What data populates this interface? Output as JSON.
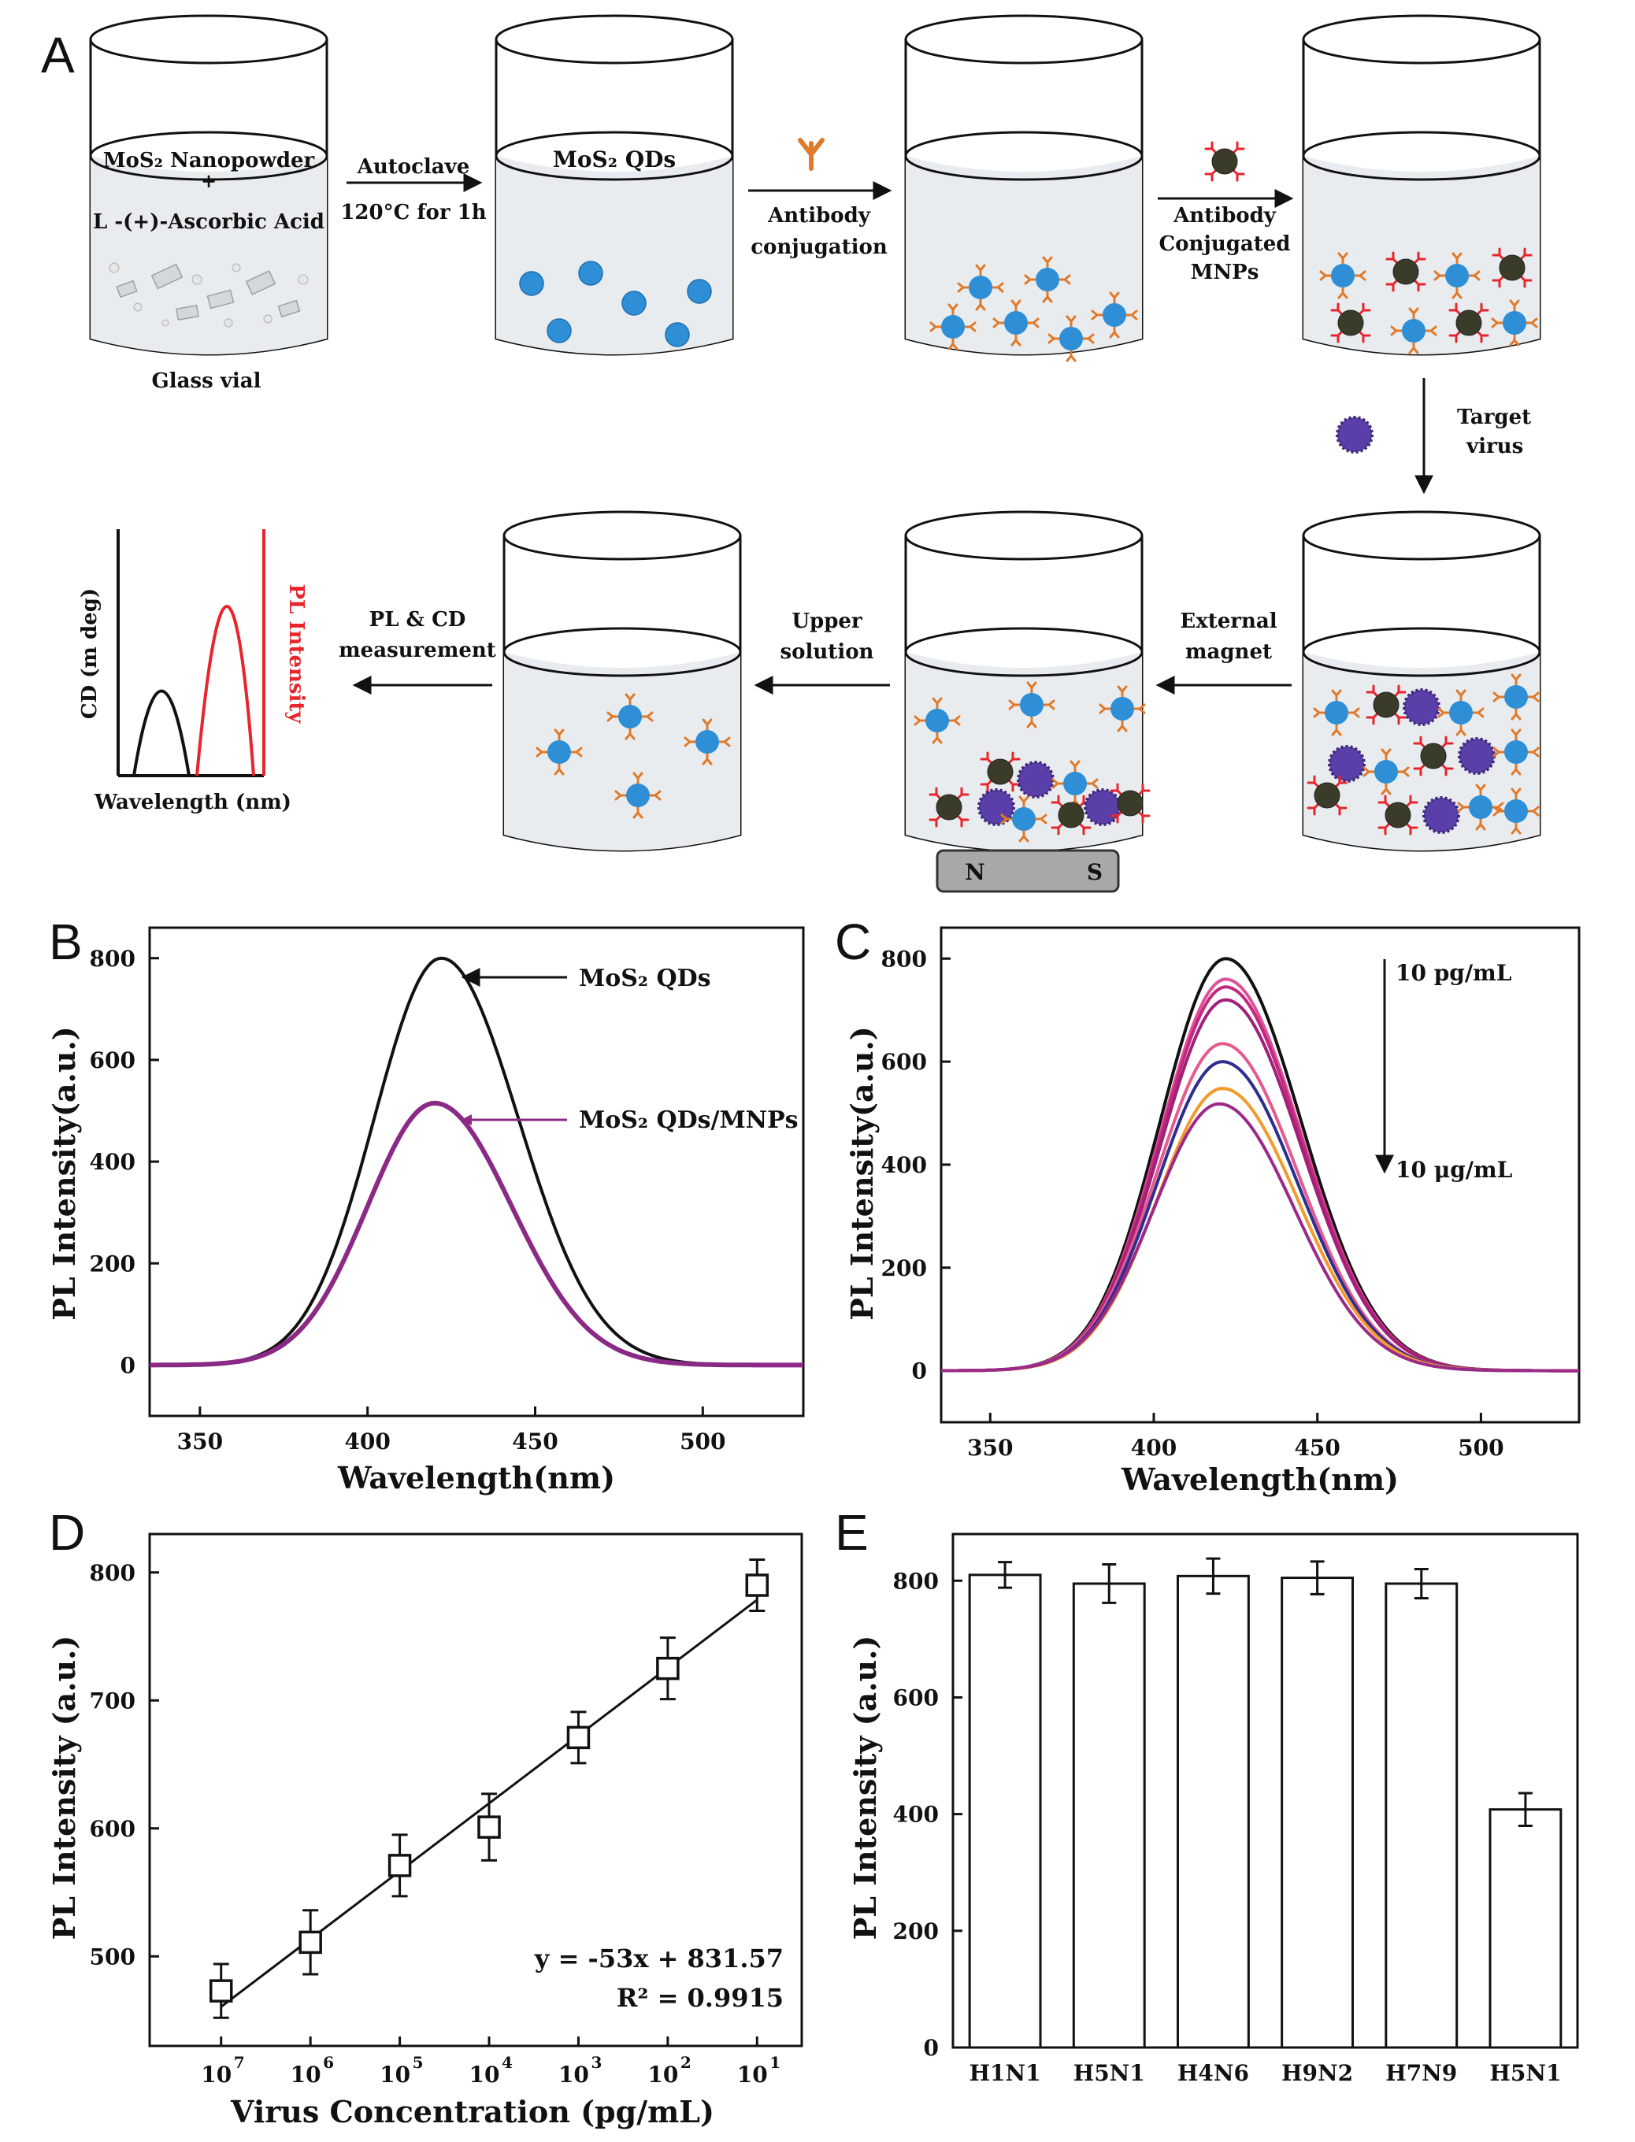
{
  "panels": {
    "a": "A",
    "b": "B",
    "c": "C",
    "d": "D",
    "e": "E"
  },
  "schematic": {
    "vial1_line1": "MoS₂ Nanopowder",
    "vial1_plus": "+",
    "vial1_line2": "L -(+)-Ascorbic Acid",
    "vial1_caption": "Glass vial",
    "step1_line1": "Autoclave",
    "step1_line2": "120°C for 1h",
    "vial2_label": "MoS₂ QDs",
    "step2_line1": "Antibody",
    "step2_line2": "conjugation",
    "step3_line1": "Antibody",
    "step3_line2": "Conjugated",
    "step3_line3": "MNPs",
    "step4_line1": "Target",
    "step4_line2": "virus",
    "step5_line1": "External",
    "step5_line2": "magnet",
    "step6_line1": "Upper",
    "step6_line2": "solution",
    "step7_line1": "PL & CD",
    "step7_line2": "measurement",
    "magnet_n": "N",
    "magnet_s": "S",
    "mini_ylabel_left": "CD (m deg)",
    "mini_ylabel_right": "PL Intensity",
    "mini_xlabel": "Wavelength (nm)",
    "colors": {
      "qd": "#2f8fd6",
      "mnp": "#3b3b2a",
      "virus": "#5b3fa8",
      "antibody": "#e07a2a",
      "liquid": "#e9ecef",
      "red": "#e8242c"
    }
  },
  "chart_data": [
    {
      "type": "line",
      "panel": "B",
      "xlabel": "Wavelength(nm)",
      "ylabel": "PL Intensity(a.u.)",
      "xlim": [
        335,
        530
      ],
      "ylim": [
        -100,
        860
      ],
      "xticks": [
        350,
        400,
        450,
        500
      ],
      "yticks": [
        0,
        200,
        400,
        600,
        800
      ],
      "series": [
        {
          "name": "MoS₂ QDs",
          "color": "#111111",
          "peak_x": 422,
          "peak_y": 800,
          "sigma_left": 20,
          "sigma_right": 23
        },
        {
          "name": "MoS₂ QDs/MNPs",
          "color": "#8b2a86",
          "peak_x": 420,
          "peak_y": 515,
          "sigma_left": 20,
          "sigma_right": 23
        }
      ],
      "annotations": [
        {
          "text": "MoS₂ QDs",
          "x": 425,
          "y": 800
        },
        {
          "text": "MoS₂ QDs/MNPs",
          "x": 425,
          "y": 515
        }
      ]
    },
    {
      "type": "line",
      "panel": "C",
      "xlabel": "Wavelength(nm)",
      "ylabel": "PL Intensity(a.u.)",
      "xlim": [
        335,
        530
      ],
      "ylim": [
        -100,
        860
      ],
      "xticks": [
        350,
        400,
        450,
        500
      ],
      "yticks": [
        0,
        200,
        400,
        600,
        800
      ],
      "series": [
        {
          "color": "#111111",
          "peak_x": 422,
          "peak_y": 800,
          "sigma_left": 20,
          "sigma_right": 23
        },
        {
          "color": "#e0509a",
          "peak_x": 422,
          "peak_y": 760,
          "sigma_left": 20,
          "sigma_right": 23
        },
        {
          "color": "#c2287e",
          "peak_x": 422,
          "peak_y": 745,
          "sigma_left": 20,
          "sigma_right": 23
        },
        {
          "color": "#a0207a",
          "peak_x": 422,
          "peak_y": 720,
          "sigma_left": 20,
          "sigma_right": 23
        },
        {
          "color": "#e65a8e",
          "peak_x": 421,
          "peak_y": 635,
          "sigma_left": 20,
          "sigma_right": 23
        },
        {
          "color": "#2e2e8e",
          "peak_x": 421,
          "peak_y": 600,
          "sigma_left": 20,
          "sigma_right": 23
        },
        {
          "color": "#f39a2d",
          "peak_x": 421,
          "peak_y": 548,
          "sigma_left": 20,
          "sigma_right": 23
        },
        {
          "color": "#9a2a8a",
          "peak_x": 420,
          "peak_y": 518,
          "sigma_left": 20,
          "sigma_right": 23
        }
      ],
      "annotations": [
        {
          "text": "10 pg/mL",
          "x": 451,
          "y": 800
        },
        {
          "text": "10 μg/mL",
          "x": 451,
          "y": 445
        }
      ]
    },
    {
      "type": "scatter",
      "panel": "D",
      "xlabel": "Virus Concentration (pg/mL)",
      "ylabel": "PL Intensity (a.u.)",
      "xlim": [
        7.8,
        0.5
      ],
      "ylim": [
        430,
        830
      ],
      "yticks": [
        500,
        600,
        700,
        800
      ],
      "xtick_labels": [
        {
          "x": 7,
          "base": "10",
          "exp": "7"
        },
        {
          "x": 6,
          "base": "10",
          "exp": "6"
        },
        {
          "x": 5,
          "base": "10",
          "exp": "5"
        },
        {
          "x": 4,
          "base": "10",
          "exp": "4"
        },
        {
          "x": 3,
          "base": "10",
          "exp": "3"
        },
        {
          "x": 2,
          "base": "10",
          "exp": "2"
        },
        {
          "x": 1,
          "base": "10",
          "exp": "1"
        }
      ],
      "points": [
        {
          "x": 7,
          "y": 473,
          "err": 21
        },
        {
          "x": 6,
          "y": 511,
          "err": 25
        },
        {
          "x": 5,
          "y": 571,
          "err": 24
        },
        {
          "x": 4,
          "y": 601,
          "err": 26
        },
        {
          "x": 3,
          "y": 671,
          "err": 20
        },
        {
          "x": 2,
          "y": 725,
          "err": 24
        },
        {
          "x": 1,
          "y": 790,
          "err": 20
        }
      ],
      "fit": {
        "slope": -53,
        "intercept": 831.57
      },
      "equation": "y = -53x + 831.57",
      "r2": "R² = 0.9915"
    },
    {
      "type": "bar",
      "panel": "E",
      "ylabel": "PL Intensity (a.u.)",
      "ylim": [
        0,
        880
      ],
      "yticks": [
        0,
        200,
        400,
        600,
        800
      ],
      "categories": [
        "H1N1",
        "H5N1",
        "H4N6",
        "H9N2",
        "H7N9",
        "H5N1"
      ],
      "values": [
        810,
        795,
        808,
        805,
        795,
        408
      ],
      "errors": [
        22,
        33,
        30,
        28,
        25,
        28
      ]
    }
  ]
}
